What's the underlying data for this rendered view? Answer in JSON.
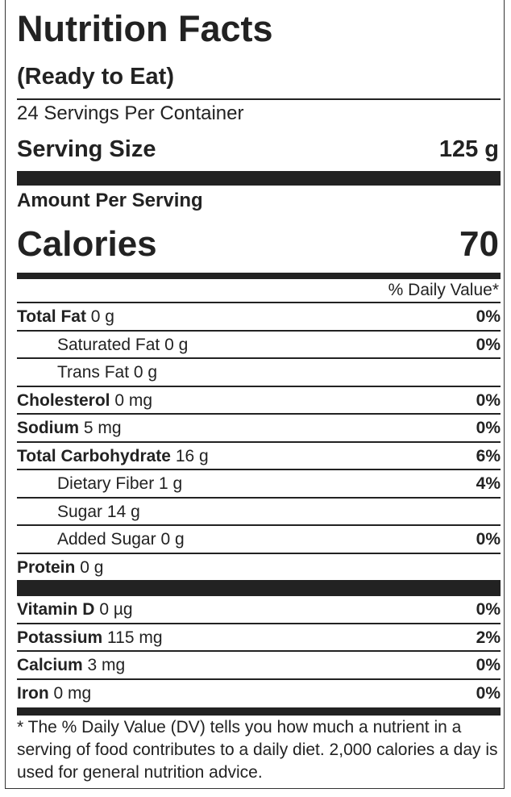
{
  "title": "Nutrition Facts",
  "subtitle": "(Ready to Eat)",
  "servings": "24 Servings Per Container",
  "serving_size": {
    "label": "Serving Size",
    "value": "125 g"
  },
  "amount_per_serving": "Amount Per Serving",
  "calories": {
    "label": "Calories",
    "value": "70"
  },
  "dv_header": "% Daily Value*",
  "nutrients": [
    {
      "name": "Total Fat",
      "amount": "0 g",
      "dv": "0%",
      "bold": true
    },
    {
      "name": "Saturated Fat",
      "amount": "0 g",
      "dv": "0%",
      "indent": true
    },
    {
      "name": "Trans Fat",
      "amount": "0 g",
      "indent": true
    },
    {
      "name": "Cholesterol",
      "amount": "0 mg",
      "dv": "0%",
      "bold": true
    },
    {
      "name": "Sodium",
      "amount": "5 mg",
      "dv": "0%",
      "bold": true
    },
    {
      "name": "Total Carbohydrate",
      "amount": "16 g",
      "dv": "6%",
      "bold": true
    },
    {
      "name": "Dietary Fiber",
      "amount": "1 g",
      "dv": "4%",
      "indent": true
    },
    {
      "name": "Sugar",
      "amount": "14 g",
      "indent": true
    },
    {
      "name": "Added Sugar",
      "amount": "0 g",
      "dv": "0%",
      "indent": true
    },
    {
      "name": "Protein",
      "amount": "0 g",
      "bold": true
    }
  ],
  "vitamins": [
    {
      "name": "Vitamin D",
      "amount": "0 µg",
      "dv": "0%",
      "bold": true
    },
    {
      "name": "Potassium",
      "amount": "115 mg",
      "dv": "2%",
      "bold": true
    },
    {
      "name": "Calcium",
      "amount": "3 mg",
      "dv": "0%",
      "bold": true
    },
    {
      "name": "Iron",
      "amount": "0 mg",
      "dv": "0%",
      "bold": true
    }
  ],
  "footnote": "* The % Daily Value (DV) tells you how much a nutrient in a serving of food contributes to a daily diet. 2,000 calories a day is used for general nutrition advice."
}
